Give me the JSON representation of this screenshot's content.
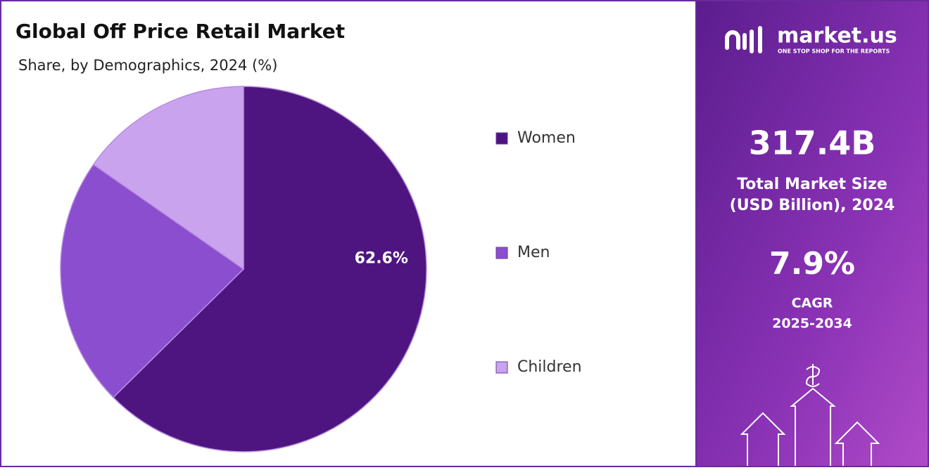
{
  "chart_data": {
    "type": "pie",
    "title": "Global Off Price Retail Market",
    "subtitle": "Share, by Demographics, 2024 (%)",
    "categories": [
      "Women",
      "Men",
      "Children"
    ],
    "values": [
      62.6,
      22.1,
      15.3
    ],
    "value_labels": [
      "62.6%",
      null,
      null
    ],
    "colors": [
      "#4e1580",
      "#8a4ecf",
      "#caa3ee"
    ],
    "legend": "right"
  },
  "panel": {
    "logo": "market.us",
    "tagline": "ONE STOP SHOP FOR THE REPORTS",
    "market_size": "317.4B",
    "market_size_label": [
      "Total Market Size",
      "(USD Billion), 2024"
    ],
    "cagr": "7.9%",
    "cagr_label": [
      "CAGR",
      "2025-2034"
    ]
  }
}
